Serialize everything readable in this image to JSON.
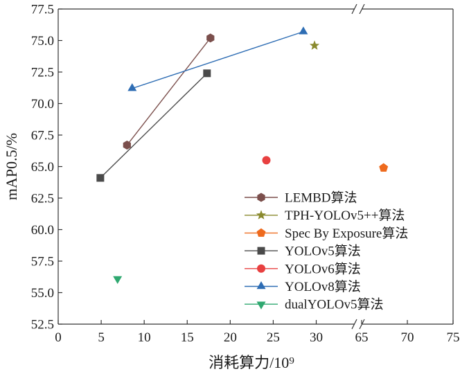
{
  "chart_data": {
    "type": "scatter",
    "xlabel": "消耗算力/10⁹",
    "ylabel": "mAP0.5/%",
    "ylim": [
      52.5,
      77.5
    ],
    "yticks": [
      "52.5",
      "55.0",
      "57.5",
      "60.0",
      "62.5",
      "65.0",
      "67.5",
      "70.0",
      "72.5",
      "75.0",
      "77.5"
    ],
    "x_axis_segments": [
      {
        "range": [
          0,
          30
        ],
        "ticks": [
          "0",
          "5",
          "10",
          "15",
          "20",
          "25",
          "30"
        ]
      },
      {
        "range": [
          65,
          75
        ],
        "ticks": [
          "65",
          "70",
          "75"
        ]
      }
    ],
    "axis_break": true,
    "grid": false,
    "legend_position": "bottom-right",
    "series": [
      {
        "name": "LEMBD算法",
        "marker": "hexagon",
        "color": "#7b4f4c",
        "connected": true,
        "points": [
          [
            8.0,
            66.7
          ],
          [
            17.7,
            75.2
          ]
        ]
      },
      {
        "name": "TPH-YOLOv5++算法",
        "marker": "star",
        "color": "#8a8a2e",
        "connected": false,
        "points": [
          [
            29.8,
            74.6
          ]
        ]
      },
      {
        "name": "Spec By Exposure算法",
        "marker": "pentagon",
        "color": "#ee6a1d",
        "connected": false,
        "points": [
          [
            67.4,
            64.9
          ]
        ]
      },
      {
        "name": "YOLOv5算法",
        "marker": "square",
        "color": "#4a4a4a",
        "connected": true,
        "points": [
          [
            4.9,
            64.1
          ],
          [
            17.3,
            72.4
          ]
        ]
      },
      {
        "name": "YOLOv6算法",
        "marker": "circle",
        "color": "#e84040",
        "connected": false,
        "points": [
          [
            24.2,
            65.5
          ]
        ]
      },
      {
        "name": "YOLOv8算法",
        "marker": "triangle-up",
        "color": "#2e6db4",
        "connected": true,
        "points": [
          [
            8.6,
            71.2
          ],
          [
            28.5,
            75.7
          ]
        ]
      },
      {
        "name": "dualYOLOv5算法",
        "marker": "triangle-down",
        "color": "#2fa870",
        "connected": false,
        "points": [
          [
            6.9,
            56.1
          ]
        ]
      }
    ]
  }
}
